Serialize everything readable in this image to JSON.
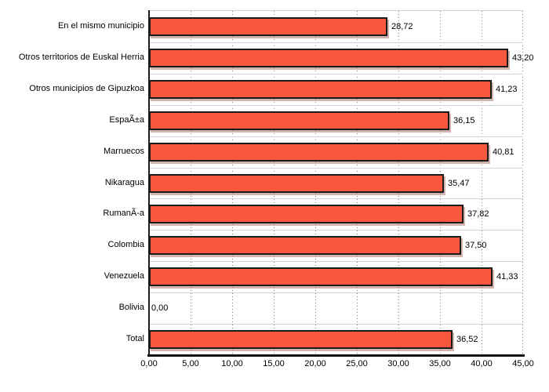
{
  "chart_data": {
    "type": "bar",
    "orientation": "horizontal",
    "title": "",
    "legend": "none",
    "grid": "vertical-dotted range gridlines, light category boundary lines",
    "categories": [
      "En el mismo municipio",
      "Otros territorios de Euskal Herria",
      "Otros municipios de Gipuzkoa",
      "EspaÃ±a",
      "Marruecos",
      "Nikaragua",
      "RumanÃ-a",
      "Colombia",
      "Venezuela",
      "Bolivia",
      "Total"
    ],
    "values": [
      28.72,
      43.2,
      41.23,
      36.15,
      40.81,
      35.47,
      37.82,
      37.5,
      41.33,
      0.0,
      36.52
    ],
    "value_labels": [
      "28,72",
      "43,20",
      "41,23",
      "36,15",
      "40,81",
      "35,47",
      "37,82",
      "37,50",
      "41,33",
      "0,00",
      "36,52"
    ],
    "x_ticks": [
      "0,00",
      "5,00",
      "10,00",
      "15,00",
      "20,00",
      "25,00",
      "30,00",
      "35,00",
      "40,00",
      "45,00"
    ],
    "xlim": [
      0,
      45
    ],
    "colors": {
      "bar_fill": "#f95740",
      "bar_border": "#1a1a1a",
      "bar_shadow": "rgba(170,120,110,0.55)",
      "range_grid": "#7d7d7d",
      "category_grid": "#d5d5d5",
      "axis": "#111111",
      "text": "#000000",
      "background": "#ffffff"
    }
  }
}
